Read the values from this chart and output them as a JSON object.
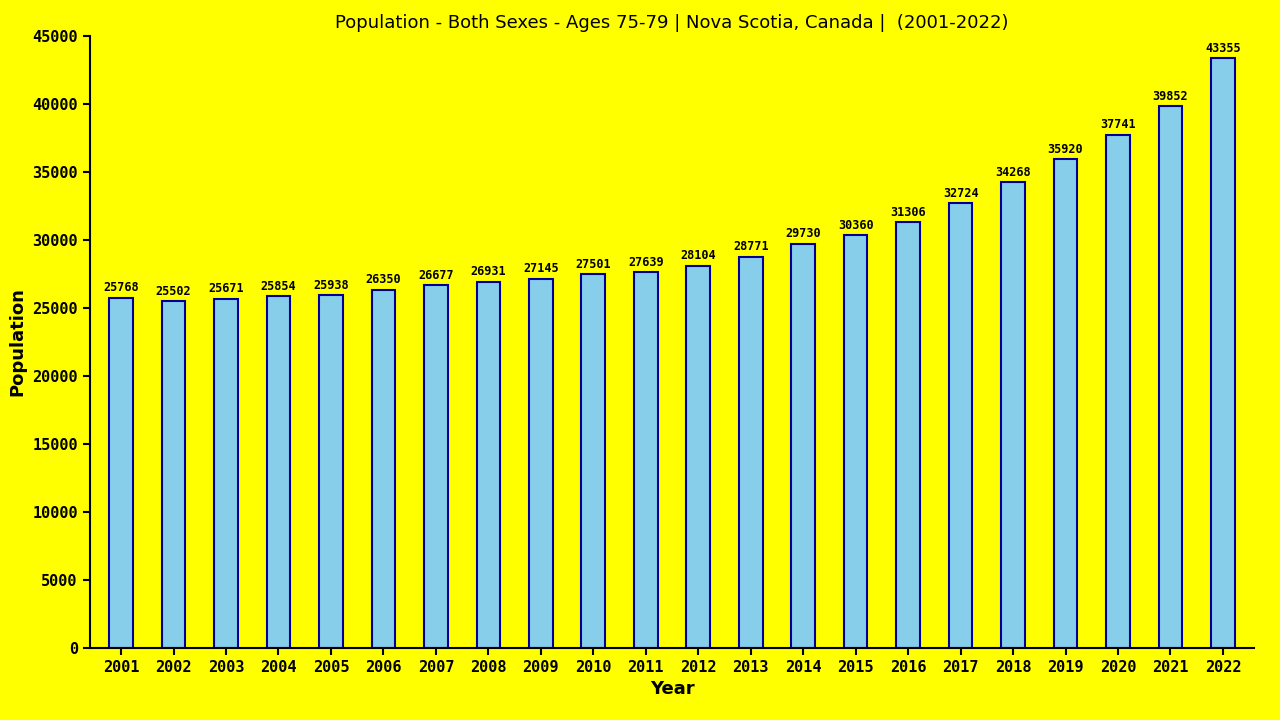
{
  "title": "Population - Both Sexes - Ages 75-79 | Nova Scotia, Canada |  (2001-2022)",
  "xlabel": "Year",
  "ylabel": "Population",
  "background_color": "#FFFF00",
  "bar_color": "#87CEEB",
  "bar_edge_color": "#000099",
  "years": [
    2001,
    2002,
    2003,
    2004,
    2005,
    2006,
    2007,
    2008,
    2009,
    2010,
    2011,
    2012,
    2013,
    2014,
    2015,
    2016,
    2017,
    2018,
    2019,
    2020,
    2021,
    2022
  ],
  "values": [
    25768,
    25502,
    25671,
    25854,
    25938,
    26350,
    26677,
    26931,
    27145,
    27501,
    27639,
    28104,
    28771,
    29730,
    30360,
    31306,
    32724,
    34268,
    35920,
    37741,
    39852,
    43355
  ],
  "ylim": [
    0,
    45000
  ],
  "yticks": [
    0,
    5000,
    10000,
    15000,
    20000,
    25000,
    30000,
    35000,
    40000,
    45000
  ],
  "title_fontsize": 13,
  "axis_label_fontsize": 13,
  "tick_fontsize": 11,
  "value_fontsize": 8.5,
  "bar_width": 0.45
}
